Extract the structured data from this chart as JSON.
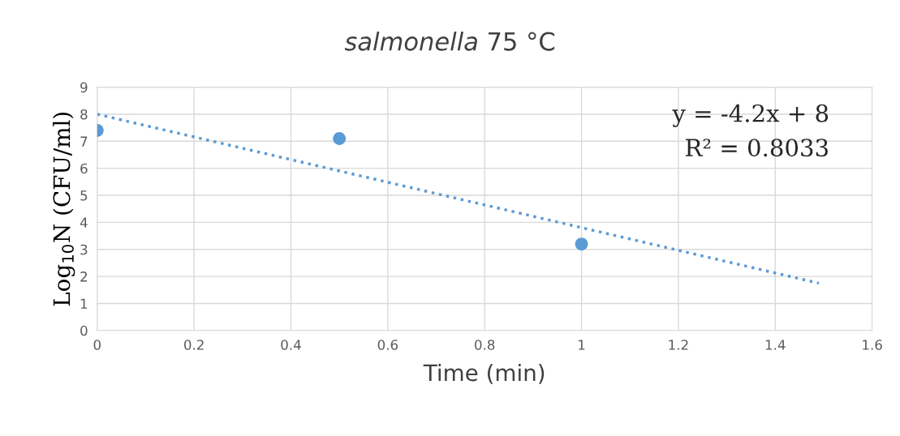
{
  "chart_data": {
    "type": "scatter",
    "title": "salmonella 75 °C",
    "xlabel": "Time (min)",
    "ylabel": "Log$_{10}$N (CFU/ml)",
    "series": [
      {
        "color": "#5b9bd5",
        "x": [
          0,
          0.5,
          1
        ],
        "values": [
          7.4,
          7.1,
          3.2
        ],
        "marker": "circle"
      },
      {
        "type": "line",
        "color": "#5b9bd5",
        "x": [
          0,
          1.49
        ],
        "values": [
          8,
          1.75
        ],
        "line_style": "dotted"
      }
    ],
    "xlim": [
      0,
      1.6
    ],
    "xticks": [
      0,
      0.2,
      0.4,
      0.6,
      0.8,
      1,
      1.2,
      1.4,
      1.6
    ],
    "ylim": [
      0,
      9
    ],
    "yticks": [
      0,
      1,
      2,
      3,
      4,
      5,
      6,
      7,
      8,
      9
    ],
    "grid": true,
    "annotations": [
      "y = -4.2x + 8",
      "R² = 0.8033"
    ]
  }
}
